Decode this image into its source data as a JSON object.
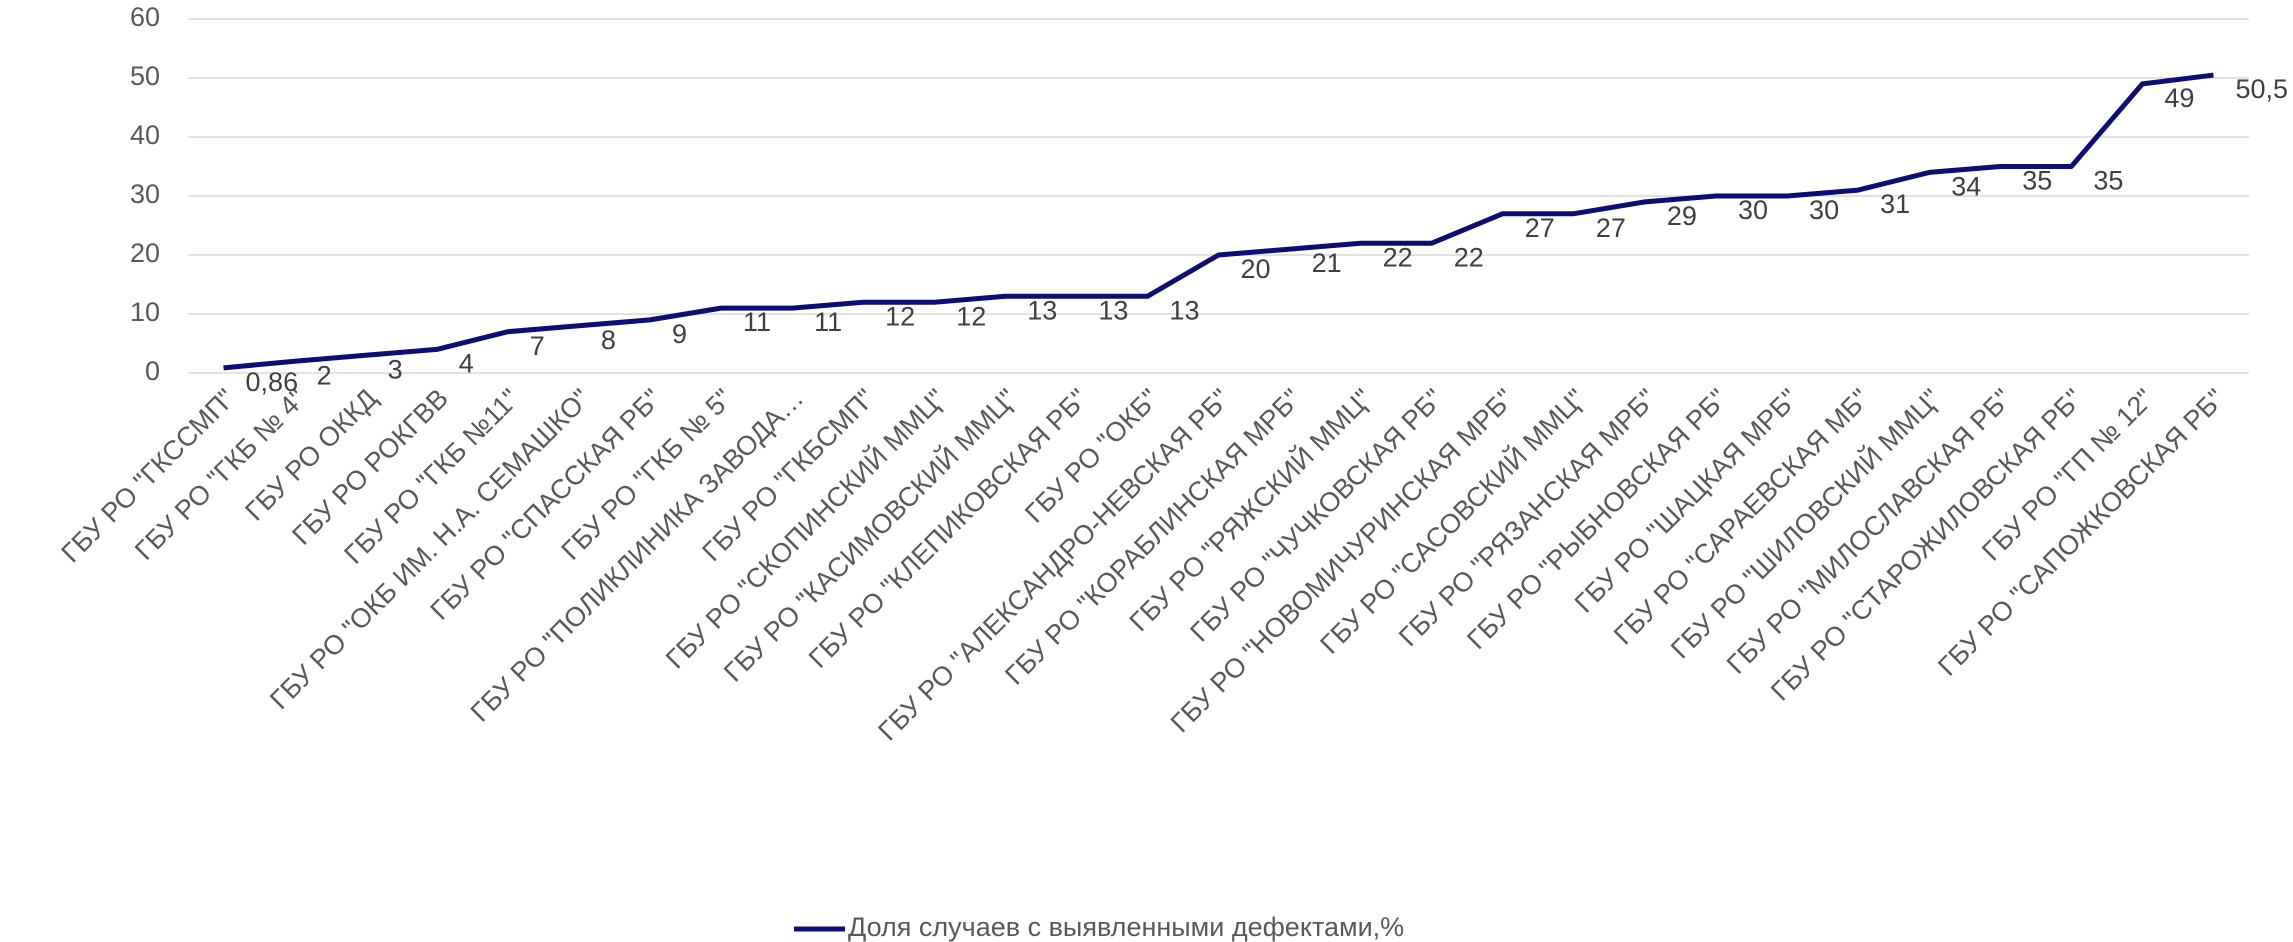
{
  "chart_data": {
    "type": "line",
    "categories": [
      "ГБУ РО \"ГКССМП\"",
      "ГБУ РО \"ГКБ № 4\"",
      "ГБУ РО ОККД",
      "ГБУ РО РОКГВВ",
      "ГБУ РО \"ГКБ №11\"",
      "ГБУ РО \"ОКБ ИМ. Н.А. СЕМАШКО\"",
      "ГБУ РО \"СПАССКАЯ РБ\"",
      "ГБУ РО \"ГКБ № 5\"",
      "ГБУ РО \"ПОЛИКЛИНИКА ЗАВОДА…",
      "ГБУ РО \"ГКБСМП\"",
      "ГБУ РО \"СКОПИНСКИЙ ММЦ\"",
      "ГБУ РО \"КАСИМОВСКИЙ ММЦ\"",
      "ГБУ РО \"КЛЕПИКОВСКАЯ РБ\"",
      "ГБУ РО \"ОКБ\"",
      "ГБУ РО \"АЛЕКСАНДРО-НЕВСКАЯ РБ\"",
      "ГБУ РО \"КОРАБЛИНСКАЯ МРБ\"",
      "ГБУ РО \"РЯЖСКИЙ ММЦ\"",
      "ГБУ РО \"ЧУЧКОВСКАЯ РБ\"",
      "ГБУ РО \"НОВОМИЧУРИНСКАЯ МРБ\"",
      "ГБУ РО \"САСОВСКИЙ ММЦ\"",
      "ГБУ РО \"РЯЗАНСКАЯ МРБ\"",
      "ГБУ РО \"РЫБНОВСКАЯ РБ\"",
      "ГБУ РО \"ШАЦКАЯ МРБ\"",
      "ГБУ РО \"САРАЕВСКАЯ МБ\"",
      "ГБУ РО \"ШИЛОВСКИЙ ММЦ\"",
      "ГБУ РО \"МИЛОСЛАВСКАЯ РБ\"",
      "ГБУ РО \"СТАРОЖИЛОВСКАЯ РБ\"",
      "ГБУ РО \"ГП № 12\"",
      "ГБУ РО \"САПОЖКОВСКАЯ РБ\""
    ],
    "series": [
      {
        "name": "Доля случаев с выявленными дефектами,%",
        "color": "#0d0d73",
        "values": [
          0.86,
          2,
          3,
          4,
          7,
          8,
          9,
          11,
          11,
          12,
          12,
          13,
          13,
          13,
          20,
          21,
          22,
          22,
          27,
          27,
          29,
          30,
          30,
          31,
          34,
          35,
          35,
          49,
          50.5
        ],
        "value_labels": [
          "0,86",
          "2",
          "3",
          "4",
          "7",
          "8",
          "9",
          "11",
          "11",
          "12",
          "12",
          "13",
          "13",
          "13",
          "20",
          "21",
          "22",
          "22",
          "27",
          "27",
          "29",
          "30",
          "30",
          "31",
          "34",
          "35",
          "35",
          "49",
          "50,5"
        ]
      }
    ],
    "ylim": [
      0,
      60
    ],
    "yticks": [
      0,
      10,
      20,
      30,
      40,
      50,
      60
    ],
    "grid": true,
    "legend": "bottom"
  }
}
